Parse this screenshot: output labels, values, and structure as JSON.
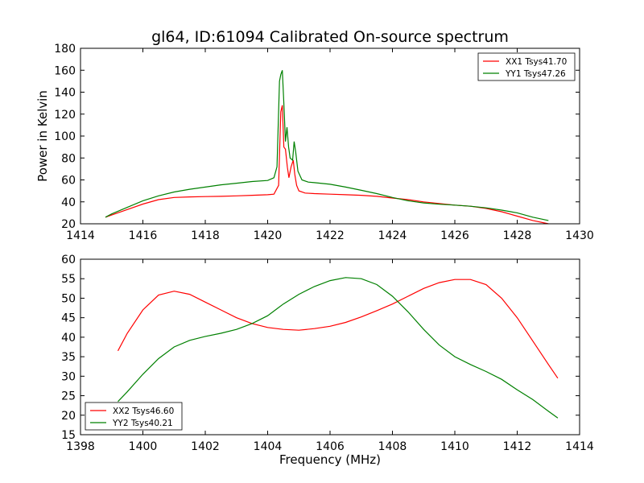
{
  "figure": {
    "title": "gl64, ID:61094 Calibrated On-source spectrum",
    "xlabel_bottom": "Frequency (MHz)"
  },
  "chart_data": [
    {
      "type": "line",
      "title": "gl64, ID:61094 Calibrated On-source spectrum",
      "xlabel": "",
      "ylabel": "Power in Kelvin",
      "xlim": [
        1414,
        1430
      ],
      "ylim": [
        20,
        180
      ],
      "xticks": [
        1414,
        1416,
        1418,
        1420,
        1422,
        1424,
        1426,
        1428,
        1430
      ],
      "yticks": [
        20,
        40,
        60,
        80,
        100,
        120,
        140,
        160,
        180
      ],
      "grid": false,
      "legend_position": "upper right",
      "series": [
        {
          "name": "XX1 Tsys41.70",
          "color": "#ff0000",
          "x": [
            1414.8,
            1415.0,
            1415.5,
            1416.0,
            1416.5,
            1417.0,
            1417.5,
            1418.0,
            1418.5,
            1419.0,
            1419.5,
            1420.0,
            1420.2,
            1420.35,
            1420.42,
            1420.47,
            1420.52,
            1420.57,
            1420.63,
            1420.68,
            1420.75,
            1420.82,
            1420.87,
            1420.93,
            1421.0,
            1421.2,
            1421.5,
            1422.0,
            1422.5,
            1423.0,
            1423.5,
            1424.0,
            1424.5,
            1425.0,
            1425.5,
            1426.0,
            1426.5,
            1427.0,
            1427.5,
            1428.0,
            1428.5,
            1429.0
          ],
          "y": [
            26,
            28,
            33,
            38,
            42,
            44,
            44.5,
            44.8,
            45,
            45.5,
            46,
            46.5,
            47,
            55,
            122,
            128,
            90,
            88,
            72,
            62,
            72,
            78,
            65,
            55,
            50,
            48,
            47.5,
            47,
            46.5,
            46,
            45,
            43.5,
            42,
            40,
            38.5,
            37,
            36,
            34,
            31,
            27,
            23,
            20
          ]
        },
        {
          "name": "YY1 Tsys47.26",
          "color": "#008000",
          "x": [
            1414.8,
            1415.0,
            1415.5,
            1416.0,
            1416.5,
            1417.0,
            1417.5,
            1418.0,
            1418.5,
            1419.0,
            1419.5,
            1420.0,
            1420.2,
            1420.3,
            1420.38,
            1420.42,
            1420.47,
            1420.52,
            1420.57,
            1420.62,
            1420.67,
            1420.72,
            1420.8,
            1420.85,
            1420.9,
            1420.97,
            1421.1,
            1421.3,
            1421.5,
            1422.0,
            1422.5,
            1423.0,
            1423.5,
            1424.0,
            1424.5,
            1425.0,
            1425.5,
            1426.0,
            1426.5,
            1427.0,
            1427.5,
            1428.0,
            1428.5,
            1429.0
          ],
          "y": [
            26,
            29,
            35,
            41,
            45.5,
            49,
            51.5,
            53.5,
            55.5,
            57,
            58.5,
            59.5,
            62,
            72,
            150,
            156,
            160,
            130,
            95,
            108,
            90,
            80,
            78,
            95,
            85,
            68,
            60,
            58,
            57.5,
            56,
            53.5,
            50.5,
            47.5,
            44,
            41,
            39,
            37.8,
            37,
            36,
            34.5,
            32.5,
            30,
            26,
            23
          ]
        }
      ]
    },
    {
      "type": "line",
      "title": "",
      "xlabel": "Frequency (MHz)",
      "ylabel": "",
      "xlim": [
        1398,
        1414
      ],
      "ylim": [
        15,
        60
      ],
      "xticks": [
        1398,
        1400,
        1402,
        1404,
        1406,
        1408,
        1410,
        1412,
        1414
      ],
      "yticks": [
        15,
        20,
        25,
        30,
        35,
        40,
        45,
        50,
        55,
        60
      ],
      "grid": false,
      "legend_position": "lower left",
      "series": [
        {
          "name": "XX2 Tsys46.60",
          "color": "#ff0000",
          "x": [
            1399.2,
            1399.5,
            1400.0,
            1400.5,
            1401.0,
            1401.5,
            1402.0,
            1402.5,
            1403.0,
            1403.5,
            1404.0,
            1404.5,
            1405.0,
            1405.5,
            1406.0,
            1406.5,
            1407.0,
            1407.5,
            1408.0,
            1408.5,
            1409.0,
            1409.5,
            1410.0,
            1410.5,
            1411.0,
            1411.5,
            1412.0,
            1412.5,
            1413.0,
            1413.3
          ],
          "y": [
            36.5,
            41,
            47,
            50.8,
            51.8,
            51,
            49,
            47,
            45,
            43.5,
            42.5,
            42,
            41.8,
            42.2,
            42.8,
            43.8,
            45.2,
            46.8,
            48.5,
            50.5,
            52.5,
            54,
            54.8,
            54.8,
            53.5,
            50,
            45,
            39,
            33,
            29.5
          ]
        },
        {
          "name": "YY2 Tsys40.21",
          "color": "#008000",
          "x": [
            1399.2,
            1399.5,
            1400.0,
            1400.5,
            1401.0,
            1401.5,
            1402.0,
            1402.5,
            1403.0,
            1403.5,
            1404.0,
            1404.5,
            1405.0,
            1405.5,
            1406.0,
            1406.5,
            1407.0,
            1407.5,
            1408.0,
            1408.5,
            1409.0,
            1409.5,
            1410.0,
            1410.5,
            1411.0,
            1411.5,
            1412.0,
            1412.5,
            1413.0,
            1413.3
          ],
          "y": [
            23.5,
            26,
            30.5,
            34.5,
            37.5,
            39.2,
            40.2,
            41,
            42,
            43.5,
            45.5,
            48.5,
            51,
            53,
            54.5,
            55.3,
            55,
            53.5,
            50.5,
            46.5,
            42,
            38,
            35,
            33,
            31.2,
            29.2,
            26.5,
            24,
            21,
            19.3
          ]
        }
      ]
    }
  ]
}
